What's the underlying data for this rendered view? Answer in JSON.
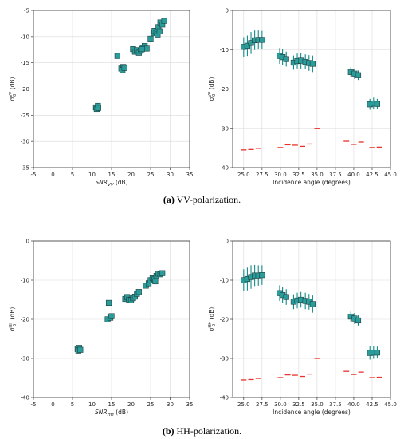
{
  "captions": [
    {
      "tag": "(a)",
      "text": "VV-polarization."
    },
    {
      "tag": "(b)",
      "text": "HH-polarization."
    }
  ],
  "colors": {
    "marker": "#2a9d9a",
    "marker_edge": "#1e3f3f",
    "errorbar": "#138a86",
    "noise": "#e8322a",
    "grid": "#d9d9d9"
  },
  "chart_data": [
    {
      "type": "scatter",
      "panel": "a-left",
      "xlabel_main": "SNR",
      "xlabel_sub": "VV",
      "xlabel_unit": "(dB)",
      "ylabel_main": "σ",
      "ylabel_sup": "VV",
      "ylabel_sub": "0",
      "ylabel_unit": "(dB)",
      "xlim": [
        -5,
        35
      ],
      "ylim": [
        -35,
        -5
      ],
      "xticks": [
        -5,
        0,
        5,
        10,
        15,
        20,
        25,
        30,
        35
      ],
      "yticks": [
        -35,
        -30,
        -25,
        -20,
        -15,
        -10,
        -5
      ],
      "grid": true,
      "points": [
        [
          11.0,
          -23.5
        ],
        [
          11.5,
          -23.2
        ],
        [
          11.2,
          -23.8
        ],
        [
          11.6,
          -23.6
        ],
        [
          16.5,
          -13.7
        ],
        [
          17.5,
          -16.1
        ],
        [
          18.0,
          -15.8
        ],
        [
          17.8,
          -16.4
        ],
        [
          18.3,
          -16.0
        ],
        [
          20.5,
          -12.4
        ],
        [
          21.0,
          -12.9
        ],
        [
          21.5,
          -12.6
        ],
        [
          22.0,
          -13.1
        ],
        [
          22.5,
          -12.7
        ],
        [
          23.0,
          -12.2
        ],
        [
          23.5,
          -11.8
        ],
        [
          24.0,
          -12.3
        ],
        [
          22.8,
          -12.4
        ],
        [
          25.0,
          -10.4
        ],
        [
          25.8,
          -9.3
        ],
        [
          26.0,
          -8.9
        ],
        [
          26.5,
          -9.2
        ],
        [
          27.0,
          -8.2
        ],
        [
          27.5,
          -7.3
        ],
        [
          28.0,
          -7.7
        ],
        [
          28.5,
          -7.0
        ],
        [
          26.8,
          -9.6
        ],
        [
          27.3,
          -9.0
        ]
      ]
    },
    {
      "type": "scatter",
      "panel": "a-right",
      "xlabel": "Incidence angle (degrees)",
      "ylabel_main": "σ",
      "ylabel_sup": "VV",
      "ylabel_sub": "0",
      "ylabel_unit": "(dB)",
      "xlim": [
        23.5,
        45.0
      ],
      "ylim": [
        -40,
        0
      ],
      "xticks": [
        "25.0",
        "27.5",
        "30.0",
        "32.5",
        "35.0",
        "37.5",
        "40.0",
        "42.5",
        "45.0"
      ],
      "yticks": [
        -40,
        -30,
        -20,
        -10,
        0
      ],
      "grid": true,
      "series": [
        {
          "kind": "sigma0_with_error",
          "points": [
            [
              25.0,
              -9.3,
              2.5
            ],
            [
              25.5,
              -9.0,
              2.6
            ],
            [
              26.0,
              -8.3,
              2.8
            ],
            [
              26.5,
              -7.6,
              2.5
            ],
            [
              27.0,
              -7.5,
              2.4
            ],
            [
              27.5,
              -7.5,
              2.3
            ],
            [
              29.9,
              -11.6,
              2.0
            ],
            [
              30.3,
              -11.9,
              2.0
            ],
            [
              30.8,
              -12.4,
              1.9
            ],
            [
              31.8,
              -13.3,
              1.8
            ],
            [
              32.3,
              -12.9,
              1.9
            ],
            [
              32.8,
              -12.8,
              2.0
            ],
            [
              33.4,
              -13.1,
              1.9
            ],
            [
              33.9,
              -13.4,
              2.0
            ],
            [
              34.4,
              -13.6,
              2.1
            ],
            [
              39.6,
              -15.7,
              1.2
            ],
            [
              40.1,
              -16.1,
              1.3
            ],
            [
              40.6,
              -16.5,
              1.2
            ],
            [
              42.2,
              -23.9,
              1.4
            ],
            [
              42.7,
              -23.7,
              1.5
            ],
            [
              43.2,
              -23.8,
              1.3
            ]
          ]
        },
        {
          "kind": "noise_floor",
          "points": [
            [
              25.0,
              -35.5
            ],
            [
              26.0,
              -35.4
            ],
            [
              27.0,
              -35.1
            ],
            [
              30.0,
              -34.9
            ],
            [
              31.0,
              -34.2
            ],
            [
              32.0,
              -34.3
            ],
            [
              33.0,
              -34.6
            ],
            [
              34.0,
              -34.0
            ],
            [
              35.0,
              -30.0
            ],
            [
              39.0,
              -33.3
            ],
            [
              40.0,
              -34.1
            ],
            [
              41.0,
              -33.5
            ],
            [
              42.5,
              -34.9
            ],
            [
              43.5,
              -34.8
            ]
          ]
        }
      ]
    },
    {
      "type": "scatter",
      "panel": "b-left",
      "xlabel_main": "SNR",
      "xlabel_sub": "HH",
      "xlabel_unit": "(dB)",
      "ylabel_main": "σ",
      "ylabel_sup": "HH",
      "ylabel_sub": "0",
      "ylabel_unit": "(dB)",
      "xlim": [
        -5,
        35
      ],
      "ylim": [
        -40,
        0
      ],
      "xticks": [
        -5,
        0,
        5,
        10,
        15,
        20,
        25,
        30,
        35
      ],
      "yticks": [
        -40,
        -30,
        -20,
        -10,
        0
      ],
      "grid": true,
      "points": [
        [
          6.3,
          -27.6
        ],
        [
          6.7,
          -27.3
        ],
        [
          6.5,
          -28.0
        ],
        [
          7.0,
          -27.8
        ],
        [
          14.0,
          -20.0
        ],
        [
          14.3,
          -15.8
        ],
        [
          14.7,
          -19.6
        ],
        [
          15.0,
          -19.2
        ],
        [
          18.5,
          -14.8
        ],
        [
          19.0,
          -14.3
        ],
        [
          19.5,
          -15.0
        ],
        [
          20.0,
          -15.1
        ],
        [
          20.5,
          -14.6
        ],
        [
          21.0,
          -14.2
        ],
        [
          21.5,
          -13.5
        ],
        [
          22.0,
          -13.0
        ],
        [
          23.8,
          -11.4
        ],
        [
          24.5,
          -10.8
        ],
        [
          25.0,
          -10.0
        ],
        [
          25.5,
          -9.5
        ],
        [
          26.0,
          -9.8
        ],
        [
          26.5,
          -8.9
        ],
        [
          27.0,
          -8.3
        ],
        [
          27.5,
          -8.5
        ],
        [
          28.0,
          -8.2
        ],
        [
          26.2,
          -10.3
        ]
      ]
    },
    {
      "type": "scatter",
      "panel": "b-right",
      "xlabel": "Incidence angle (degrees)",
      "ylabel_main": "σ",
      "ylabel_sup": "HH",
      "ylabel_sub": "0",
      "ylabel_unit": "(dB)",
      "xlim": [
        23.5,
        45.0
      ],
      "ylim": [
        -40,
        0
      ],
      "xticks": [
        "25.0",
        "27.5",
        "30.0",
        "32.5",
        "35.0",
        "37.5",
        "40.0",
        "42.5",
        "45.0"
      ],
      "yticks": [
        -40,
        -30,
        -20,
        -10,
        0
      ],
      "grid": true,
      "series": [
        {
          "kind": "sigma0_with_error",
          "points": [
            [
              25.0,
              -10.0,
              2.8
            ],
            [
              25.5,
              -9.7,
              2.9
            ],
            [
              26.0,
              -9.2,
              3.0
            ],
            [
              26.5,
              -8.8,
              2.7
            ],
            [
              27.0,
              -8.8,
              2.6
            ],
            [
              27.5,
              -8.7,
              2.5
            ],
            [
              29.9,
              -13.3,
              2.0
            ],
            [
              30.3,
              -13.8,
              2.1
            ],
            [
              30.8,
              -14.3,
              2.0
            ],
            [
              31.8,
              -15.5,
              1.9
            ],
            [
              32.3,
              -15.2,
              2.0
            ],
            [
              32.8,
              -15.0,
              2.0
            ],
            [
              33.4,
              -15.3,
              2.1
            ],
            [
              33.9,
              -15.5,
              2.0
            ],
            [
              34.4,
              -16.1,
              2.2
            ],
            [
              39.6,
              -19.3,
              1.3
            ],
            [
              40.1,
              -19.8,
              1.4
            ],
            [
              40.6,
              -20.3,
              1.3
            ],
            [
              42.2,
              -28.6,
              1.7
            ],
            [
              42.7,
              -28.5,
              1.6
            ],
            [
              43.2,
              -28.5,
              1.5
            ]
          ]
        },
        {
          "kind": "noise_floor",
          "points": [
            [
              25.0,
              -35.5
            ],
            [
              26.0,
              -35.4
            ],
            [
              27.0,
              -35.1
            ],
            [
              30.0,
              -34.9
            ],
            [
              31.0,
              -34.2
            ],
            [
              32.0,
              -34.3
            ],
            [
              33.0,
              -34.6
            ],
            [
              34.0,
              -34.0
            ],
            [
              35.0,
              -30.0
            ],
            [
              39.0,
              -33.3
            ],
            [
              40.0,
              -34.1
            ],
            [
              41.0,
              -33.5
            ],
            [
              42.5,
              -34.9
            ],
            [
              43.5,
              -34.8
            ]
          ]
        }
      ]
    }
  ]
}
